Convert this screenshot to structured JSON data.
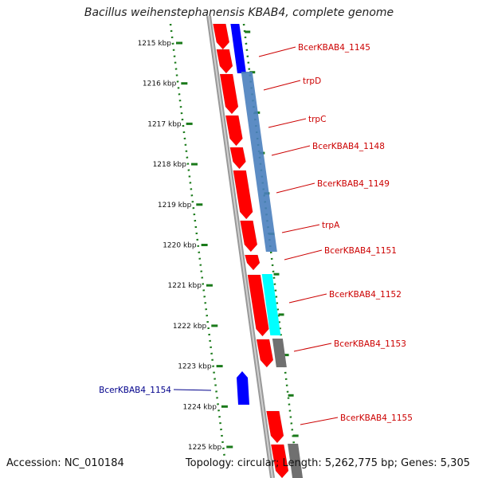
{
  "title": "Bacillus weihenstephanensis KBAB4, complete genome",
  "accession": "Accession: NC_010184",
  "topology": "Topology: circular; Length: 5,262,775 bp; Genes: 5,305",
  "colors": {
    "gene_red": "#ff0000",
    "gene_blue": "#0000ff",
    "operon_blue": "#4a7fbe",
    "cyan": "#00ffff",
    "gray": "#707070",
    "scale_green": "#1a7a1a",
    "label_red": "#cc0000",
    "label_blue": "#00008b"
  },
  "scale_ticks": [
    {
      "label": "1215 kbp"
    },
    {
      "label": "1216 kbp"
    },
    {
      "label": "1217 kbp"
    },
    {
      "label": "1218 kbp"
    },
    {
      "label": "1219 kbp"
    },
    {
      "label": "1220 kbp"
    },
    {
      "label": "1221 kbp"
    },
    {
      "label": "1222 kbp"
    },
    {
      "label": "1223 kbp"
    },
    {
      "label": "1224 kbp"
    },
    {
      "label": "1225 kbp"
    }
  ],
  "gene_labels": [
    {
      "text": "BcerKBAB4_1145",
      "strand": "forward"
    },
    {
      "text": "trpD",
      "strand": "forward"
    },
    {
      "text": "trpC",
      "strand": "forward"
    },
    {
      "text": "BcerKBAB4_1148",
      "strand": "forward"
    },
    {
      "text": "BcerKBAB4_1149",
      "strand": "forward"
    },
    {
      "text": "trpA",
      "strand": "forward"
    },
    {
      "text": "BcerKBAB4_1151",
      "strand": "forward"
    },
    {
      "text": "BcerKBAB4_1152",
      "strand": "forward"
    },
    {
      "text": "BcerKBAB4_1153",
      "strand": "forward"
    },
    {
      "text": "BcerKBAB4_1154",
      "strand": "reverse"
    },
    {
      "text": "BcerKBAB4_1155",
      "strand": "forward"
    }
  ]
}
